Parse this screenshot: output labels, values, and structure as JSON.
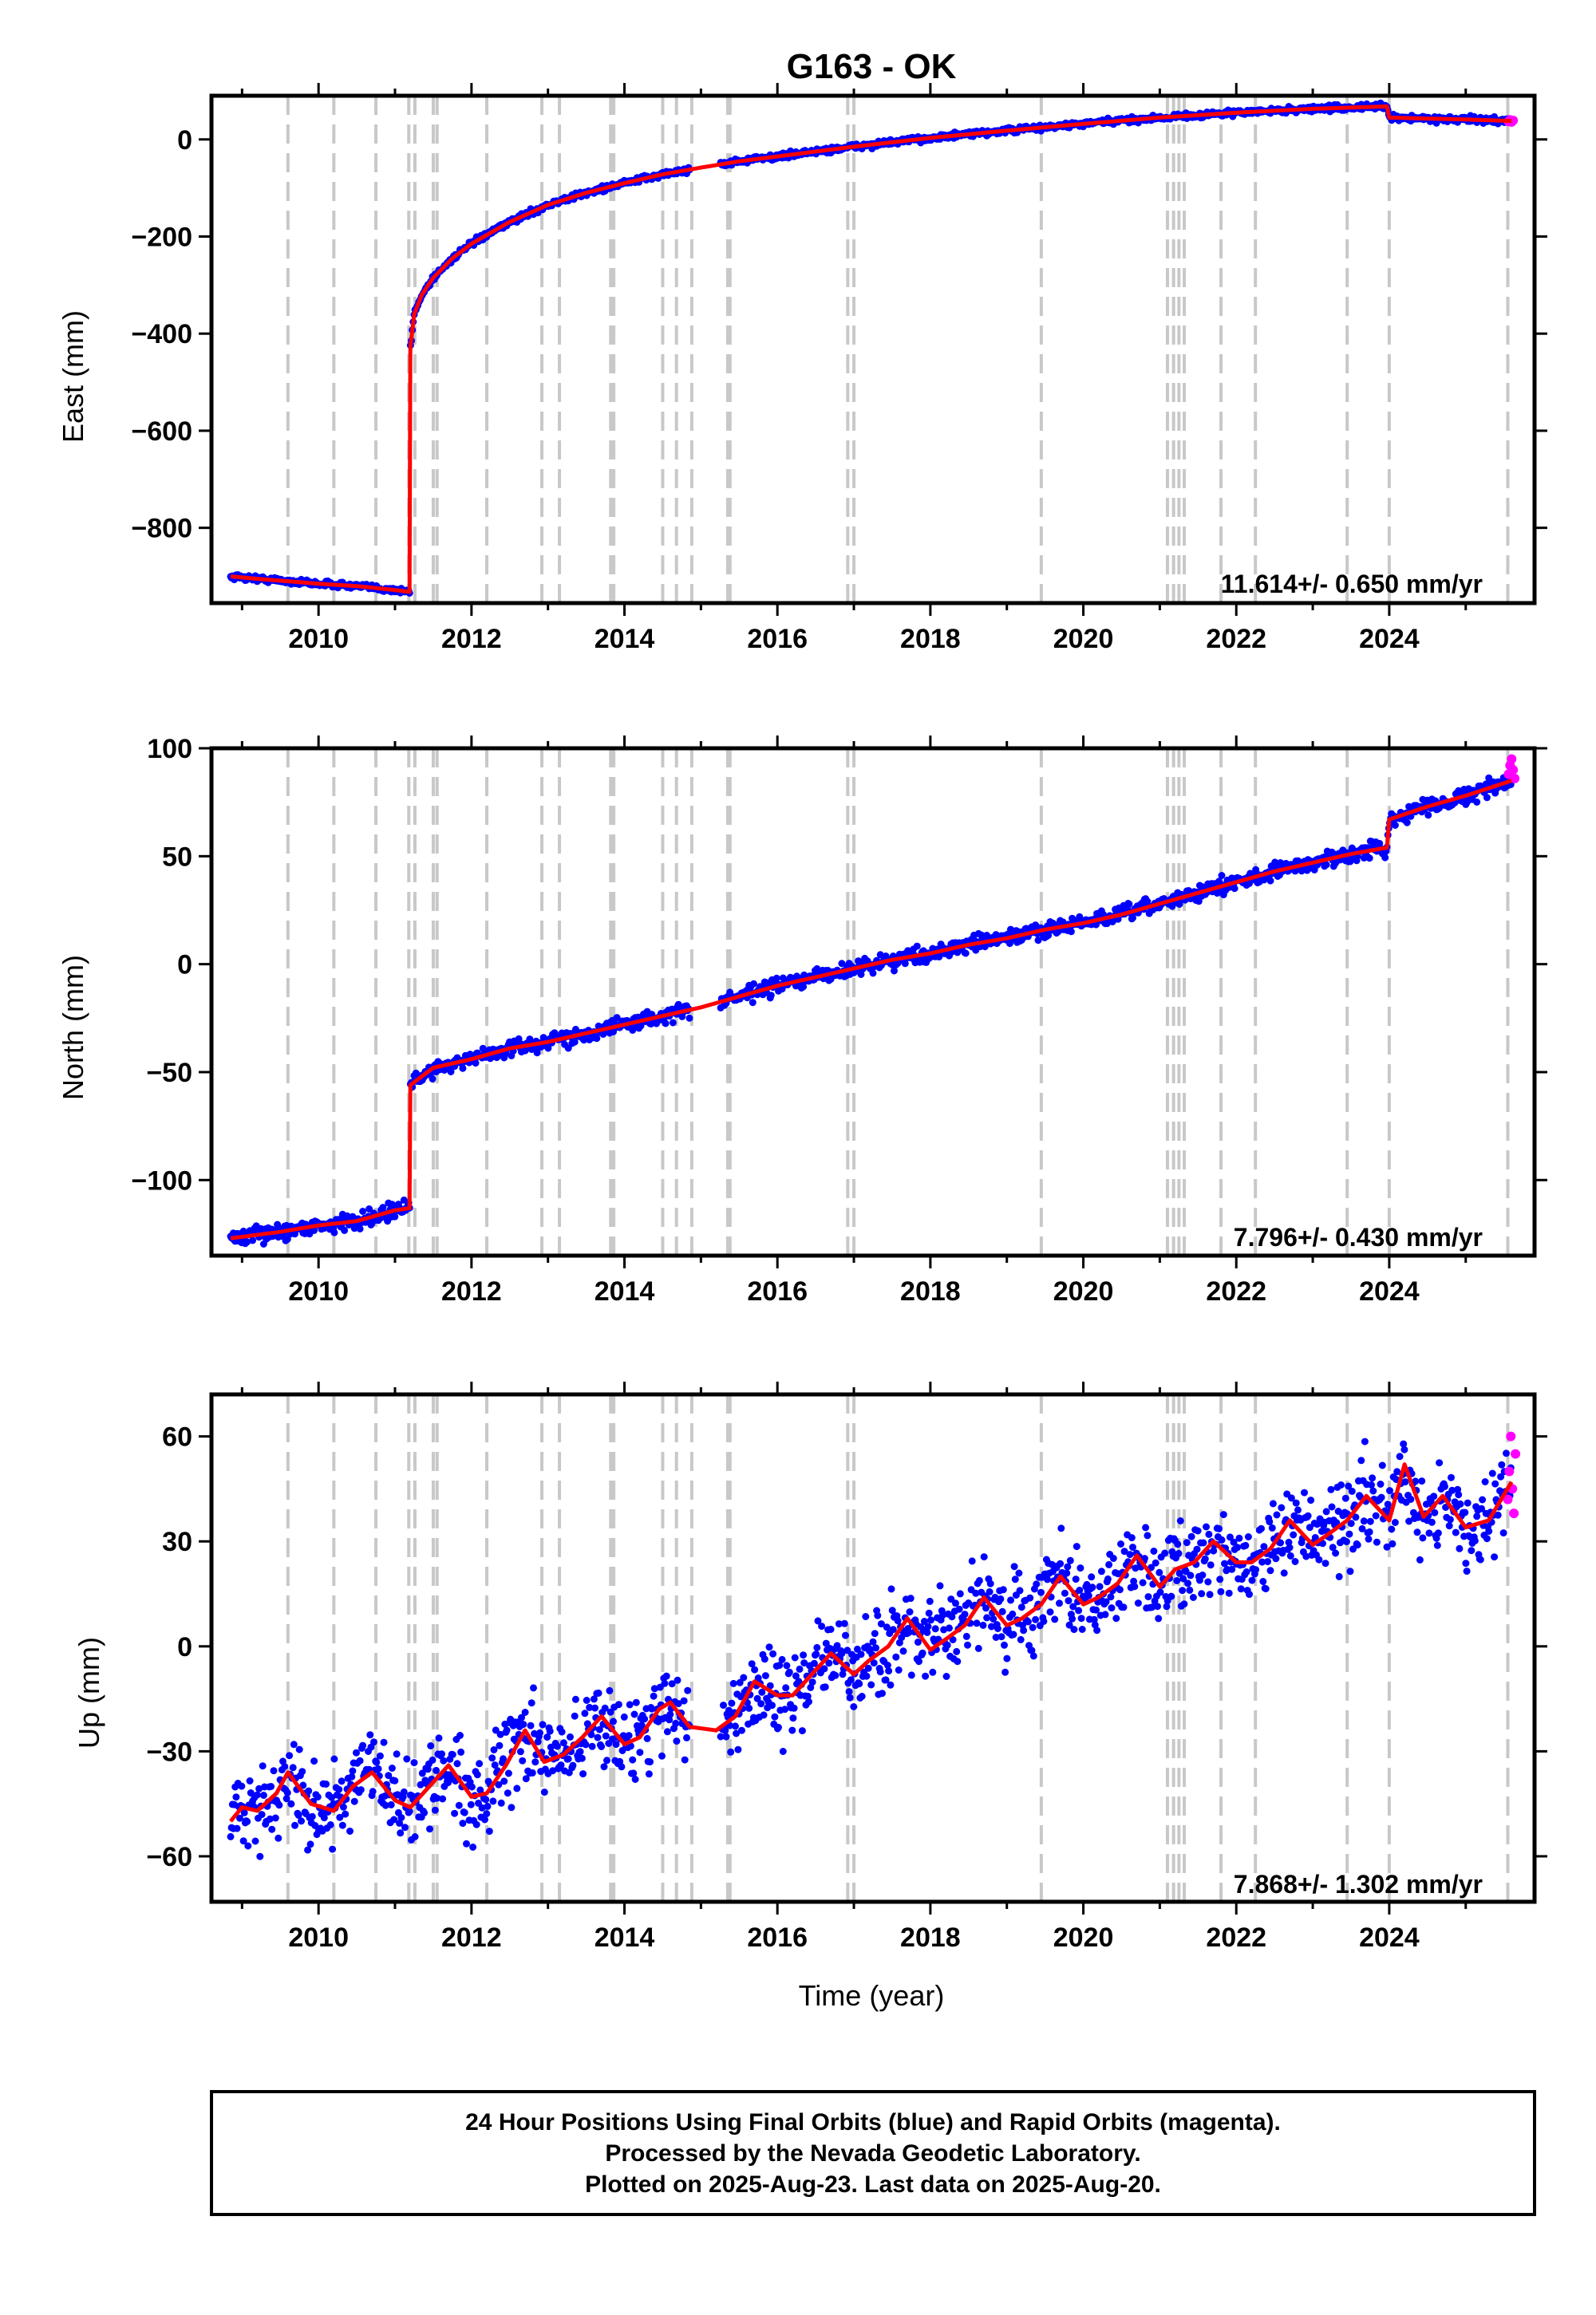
{
  "title": "G163 - OK",
  "colors": {
    "final_orbits": "#0000ff",
    "rapid_orbits": "#ff00ff",
    "model": "#ff0000",
    "event_lines": "#c8c8c8",
    "frame": "#000000"
  },
  "xaxis": {
    "label": "Time (year)",
    "range": [
      2008.6,
      2025.9
    ],
    "ticks": [
      2010,
      2012,
      2014,
      2016,
      2018,
      2020,
      2022,
      2024
    ],
    "tick_labels": [
      "2010",
      "2012",
      "2014",
      "2016",
      "2018",
      "2020",
      "2022",
      "2024"
    ]
  },
  "event_lines": [
    2009.6,
    2010.2,
    2010.75,
    2011.18,
    2011.26,
    2011.5,
    2011.55,
    2012.2,
    2012.92,
    2013.15,
    2013.82,
    2013.86,
    2014.5,
    2014.68,
    2014.88,
    2015.35,
    2015.38,
    2016.92,
    2017.0,
    2019.45,
    2021.1,
    2021.18,
    2021.25,
    2021.32,
    2021.8,
    2022.25,
    2023.45,
    2024.0,
    2025.55
  ],
  "footer": {
    "line1": "24 Hour Positions Using Final Orbits (blue) and Rapid Orbits (magenta).",
    "line2": "Processed by the Nevada Geodetic Laboratory.",
    "line3": "Plotted on 2025-Aug-23. Last data on 2025-Aug-20."
  },
  "chart_data": [
    {
      "type": "scatter",
      "component": "east",
      "ylabel": "East (mm)",
      "ylim": [
        -955,
        90
      ],
      "yticks": [
        0,
        -200,
        -400,
        -600,
        -800
      ],
      "ytick_labels": [
        "0",
        "−200",
        "−400",
        "−600",
        "−800"
      ],
      "grid": false,
      "rate": "11.614+/- 0.650 mm/yr",
      "noise_mm": 3,
      "model": {
        "x": [
          2008.85,
          2009.2,
          2009.6,
          2010.0,
          2010.5,
          2011.0,
          2011.19,
          2011.2,
          2011.25,
          2011.35,
          2011.5,
          2011.75,
          2012.0,
          2012.5,
          2013.0,
          2013.5,
          2014.0,
          2014.5,
          2015.0,
          2015.5,
          2016.0,
          2017.0,
          2018.0,
          2019.0,
          2020.0,
          2021.0,
          2022.0,
          2023.0,
          2023.97,
          2024.0,
          2024.5,
          2025.0,
          2025.6
        ],
        "y": [
          -900,
          -905,
          -910,
          -915,
          -920,
          -928,
          -932,
          -430,
          -360,
          -320,
          -285,
          -245,
          -215,
          -170,
          -135,
          -110,
          -90,
          -72,
          -58,
          -45,
          -35,
          -15,
          3,
          18,
          32,
          45,
          55,
          63,
          68,
          45,
          43,
          41,
          38
        ]
      },
      "rapid": {
        "x": [
          2025.56,
          2025.58,
          2025.6,
          2025.62
        ],
        "y": [
          37,
          40,
          36,
          39
        ]
      }
    },
    {
      "type": "scatter",
      "component": "north",
      "ylabel": "North (mm)",
      "ylim": [
        -135,
        100
      ],
      "yticks": [
        100,
        50,
        0,
        -50,
        -100
      ],
      "ytick_labels": [
        "100",
        "50",
        "0",
        "−50",
        "−100"
      ],
      "grid": false,
      "rate": "7.796+/- 0.430 mm/yr",
      "noise_mm": 1.8,
      "model": {
        "x": [
          2008.85,
          2009.5,
          2010.0,
          2010.5,
          2011.0,
          2011.19,
          2011.2,
          2011.5,
          2012.0,
          2012.5,
          2013.0,
          2013.5,
          2014.0,
          2014.5,
          2015.0,
          2015.5,
          2016.0,
          2016.5,
          2017.0,
          2017.5,
          2018.0,
          2018.5,
          2019.0,
          2019.5,
          2020.0,
          2020.5,
          2021.0,
          2021.5,
          2022.0,
          2022.5,
          2023.0,
          2023.5,
          2023.97,
          2024.0,
          2024.5,
          2025.0,
          2025.6
        ],
        "y": [
          -127,
          -124,
          -121,
          -119,
          -114,
          -113,
          -56,
          -48,
          -44,
          -39,
          -36,
          -32,
          -28,
          -24,
          -20,
          -15,
          -10,
          -6,
          -2,
          2,
          5,
          9,
          12,
          16,
          19,
          23,
          28,
          33,
          38,
          43,
          47,
          51,
          54,
          67,
          73,
          78,
          85
        ]
      },
      "rapid": {
        "x": [
          2025.56,
          2025.58,
          2025.6,
          2025.62,
          2025.64
        ],
        "y": [
          88,
          92,
          95,
          90,
          86
        ]
      }
    },
    {
      "type": "scatter",
      "component": "up",
      "ylabel": "Up (mm)",
      "ylim": [
        -73,
        72
      ],
      "yticks": [
        60,
        30,
        0,
        -30,
        -60
      ],
      "ytick_labels": [
        "60",
        "30",
        "0",
        "−30",
        "−60"
      ],
      "grid": false,
      "rate": "7.868+/- 1.302 mm/yr",
      "noise_mm": 6,
      "model": {
        "x": [
          2008.85,
          2009.0,
          2009.2,
          2009.45,
          2009.6,
          2009.9,
          2010.2,
          2010.45,
          2010.7,
          2011.0,
          2011.2,
          2011.45,
          2011.7,
          2012.0,
          2012.2,
          2012.45,
          2012.7,
          2012.95,
          2013.2,
          2013.45,
          2013.7,
          2014.0,
          2014.2,
          2014.45,
          2014.6,
          2014.85,
          2015.2,
          2015.45,
          2015.7,
          2016.0,
          2016.2,
          2016.45,
          2016.7,
          2017.0,
          2017.2,
          2017.45,
          2017.7,
          2018.0,
          2018.2,
          2018.45,
          2018.7,
          2019.0,
          2019.2,
          2019.45,
          2019.7,
          2020.0,
          2020.2,
          2020.45,
          2020.7,
          2021.0,
          2021.2,
          2021.45,
          2021.7,
          2022.0,
          2022.2,
          2022.45,
          2022.7,
          2023.0,
          2023.2,
          2023.45,
          2023.7,
          2024.0,
          2024.2,
          2024.45,
          2024.7,
          2025.0,
          2025.3,
          2025.6
        ],
        "y": [
          -50,
          -46,
          -47,
          -42,
          -36,
          -45,
          -47,
          -40,
          -36,
          -44,
          -46,
          -40,
          -34,
          -43,
          -42,
          -34,
          -24,
          -33,
          -31,
          -26,
          -20,
          -28,
          -26,
          -18,
          -16,
          -23,
          -24,
          -20,
          -10,
          -14,
          -14,
          -8,
          -2,
          -8,
          -4,
          0,
          8,
          -1,
          2,
          6,
          14,
          6,
          8,
          12,
          20,
          12,
          14,
          18,
          26,
          17,
          22,
          24,
          30,
          24,
          24,
          28,
          36,
          29,
          32,
          36,
          43,
          36,
          52,
          37,
          43,
          34,
          36,
          47
        ]
      },
      "rapid": {
        "x": [
          2025.55,
          2025.57,
          2025.59,
          2025.61,
          2025.63,
          2025.65
        ],
        "y": [
          42,
          50,
          60,
          45,
          38,
          55
        ]
      }
    }
  ]
}
